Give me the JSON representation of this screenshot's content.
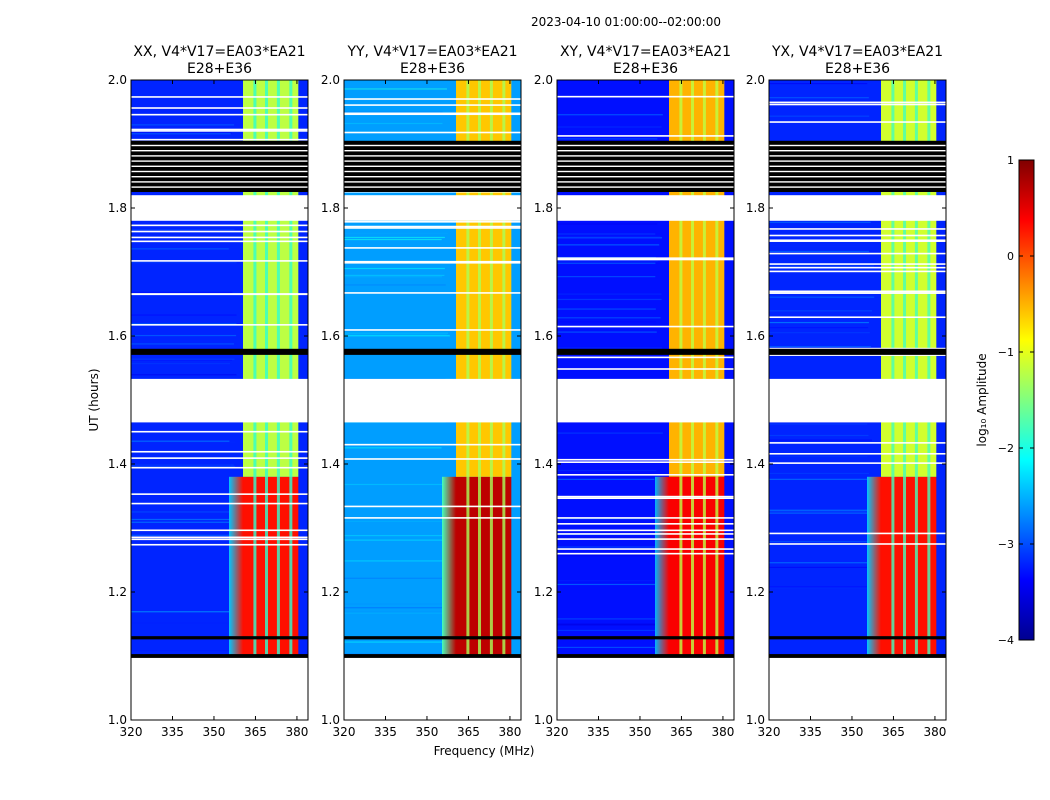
{
  "suptitle": "2023-04-10  01:00:00--02:00:00",
  "colors": {
    "axis": "#000000",
    "flag_black": "#000000",
    "gap_white": "#ffffff",
    "colormap": [
      "#00008f",
      "#0000ff",
      "#0080ff",
      "#00ffff",
      "#80ff80",
      "#ffff00",
      "#ff8000",
      "#ff0000",
      "#800000"
    ]
  },
  "chart_data": {
    "type": "heatmap",
    "title": "2023-04-10  01:00:00--02:00:00",
    "xlabel": "Frequency (MHz)",
    "ylabel": "UT (hours)",
    "xlim": [
      320,
      384
    ],
    "ylim": [
      1.0,
      2.0
    ],
    "xticks": [
      "320",
      "335",
      "350",
      "365",
      "380"
    ],
    "yticks": [
      "1.0",
      "1.2",
      "1.4",
      "1.6",
      "1.8",
      "2.0"
    ],
    "data_extent_ut": [
      1.1,
      2.0
    ],
    "no_data_ranges_ut": [
      [
        1.0,
        1.1
      ],
      [
        1.465,
        1.5
      ],
      [
        1.5,
        1.533
      ],
      [
        1.78,
        1.82
      ]
    ],
    "flagged_ranges_ut": [
      [
        1.097,
        1.103
      ],
      [
        1.126,
        1.131
      ],
      [
        1.5705,
        1.58
      ],
      [
        1.825,
        1.905
      ]
    ],
    "rfi_band_mhz": [
      360.5,
      380.5
    ],
    "rfi_channel_gaps_mhz": [
      364.8,
      369.0,
      373.3,
      377.8
    ],
    "colorbar": {
      "label": "log₁₀ Amplitude",
      "range": [
        -4,
        1
      ],
      "ticks": [
        "1",
        "0",
        "−1",
        "−2",
        "−3",
        "−4"
      ]
    },
    "panels": [
      {
        "title_line1": "XX, V4*V17=EA03*EA21",
        "title_line2": "E28+E36",
        "background_log_amp": -3.2,
        "rfi_log_amp_early": 0.3,
        "rfi_log_amp_late": -1.2
      },
      {
        "title_line1": "YY, V4*V17=EA03*EA21",
        "title_line2": "E28+E36",
        "background_log_amp": -2.6,
        "rfi_log_amp_early": 0.7,
        "rfi_log_amp_late": -0.6
      },
      {
        "title_line1": "XY, V4*V17=EA03*EA21",
        "title_line2": "E28+E36",
        "background_log_amp": -3.3,
        "rfi_log_amp_early": 0.4,
        "rfi_log_amp_late": -0.5
      },
      {
        "title_line1": "YX, V4*V17=EA03*EA21",
        "title_line2": "E28+E36",
        "background_log_amp": -3.2,
        "rfi_log_amp_early": 0.3,
        "rfi_log_amp_late": -1.1
      }
    ]
  }
}
